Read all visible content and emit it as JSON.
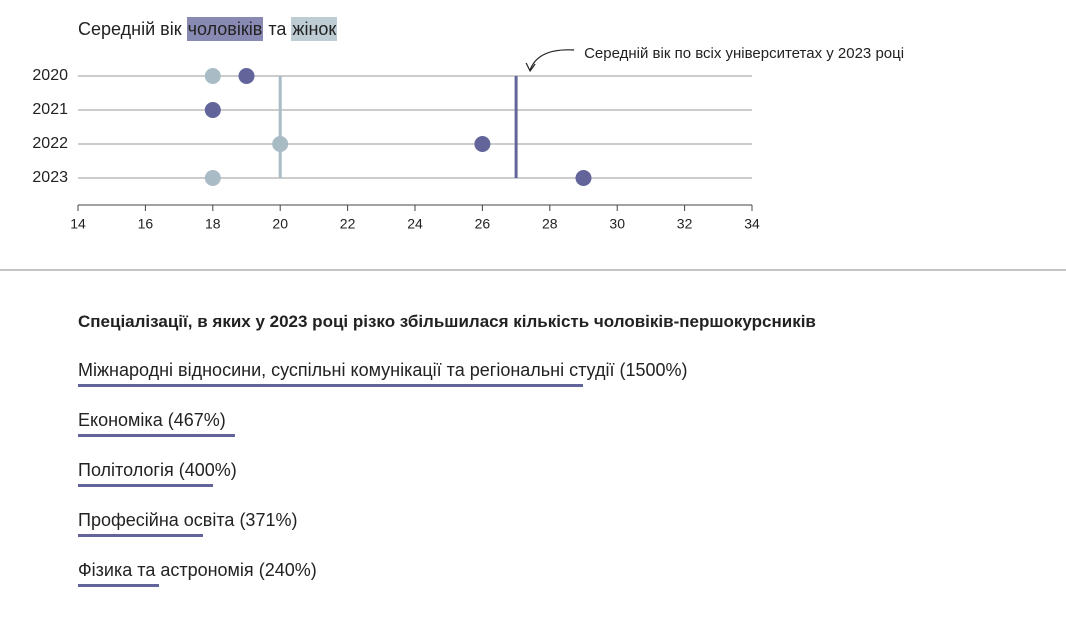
{
  "chart_data": [
    {
      "type": "dot",
      "title_start": "Середній вік",
      "title_join": "та",
      "categories": [
        "2020",
        "2021",
        "2022",
        "2023"
      ],
      "series": [
        {
          "name": "жінок",
          "color": "#a9bcc6",
          "values": [
            18,
            18,
            20,
            18
          ]
        },
        {
          "name": "чоловіків",
          "color": "#62649a",
          "values": [
            19,
            18,
            26,
            29
          ]
        }
      ],
      "reference_lines": [
        {
          "value": 20,
          "color": "#a9bcc6"
        },
        {
          "value": 27,
          "color": "#62649a",
          "label": "Середній вік по всіх університетах у 2023 році"
        }
      ],
      "xlim": [
        14,
        34
      ],
      "xticks": [
        14,
        16,
        18,
        20,
        22,
        24,
        26,
        28,
        30,
        32,
        34
      ],
      "grid": true
    },
    {
      "type": "underline-bar",
      "title": "Спеціалізації, в яких у 2023 році різко збільшилася кількість чоловіків-першокурсників",
      "color": "#62649a",
      "categories": [
        "Міжнародні відносини, суспільні комунікації та регіональні студії",
        "Економіка",
        "Політологія",
        "Професійна освіта",
        "Фізика та астрономія"
      ],
      "values": [
        1500,
        467,
        400,
        371,
        240
      ],
      "value_labels": [
        "(1500%)",
        "(467%)",
        "(400%)",
        "(371%)",
        "(240%)"
      ]
    }
  ]
}
